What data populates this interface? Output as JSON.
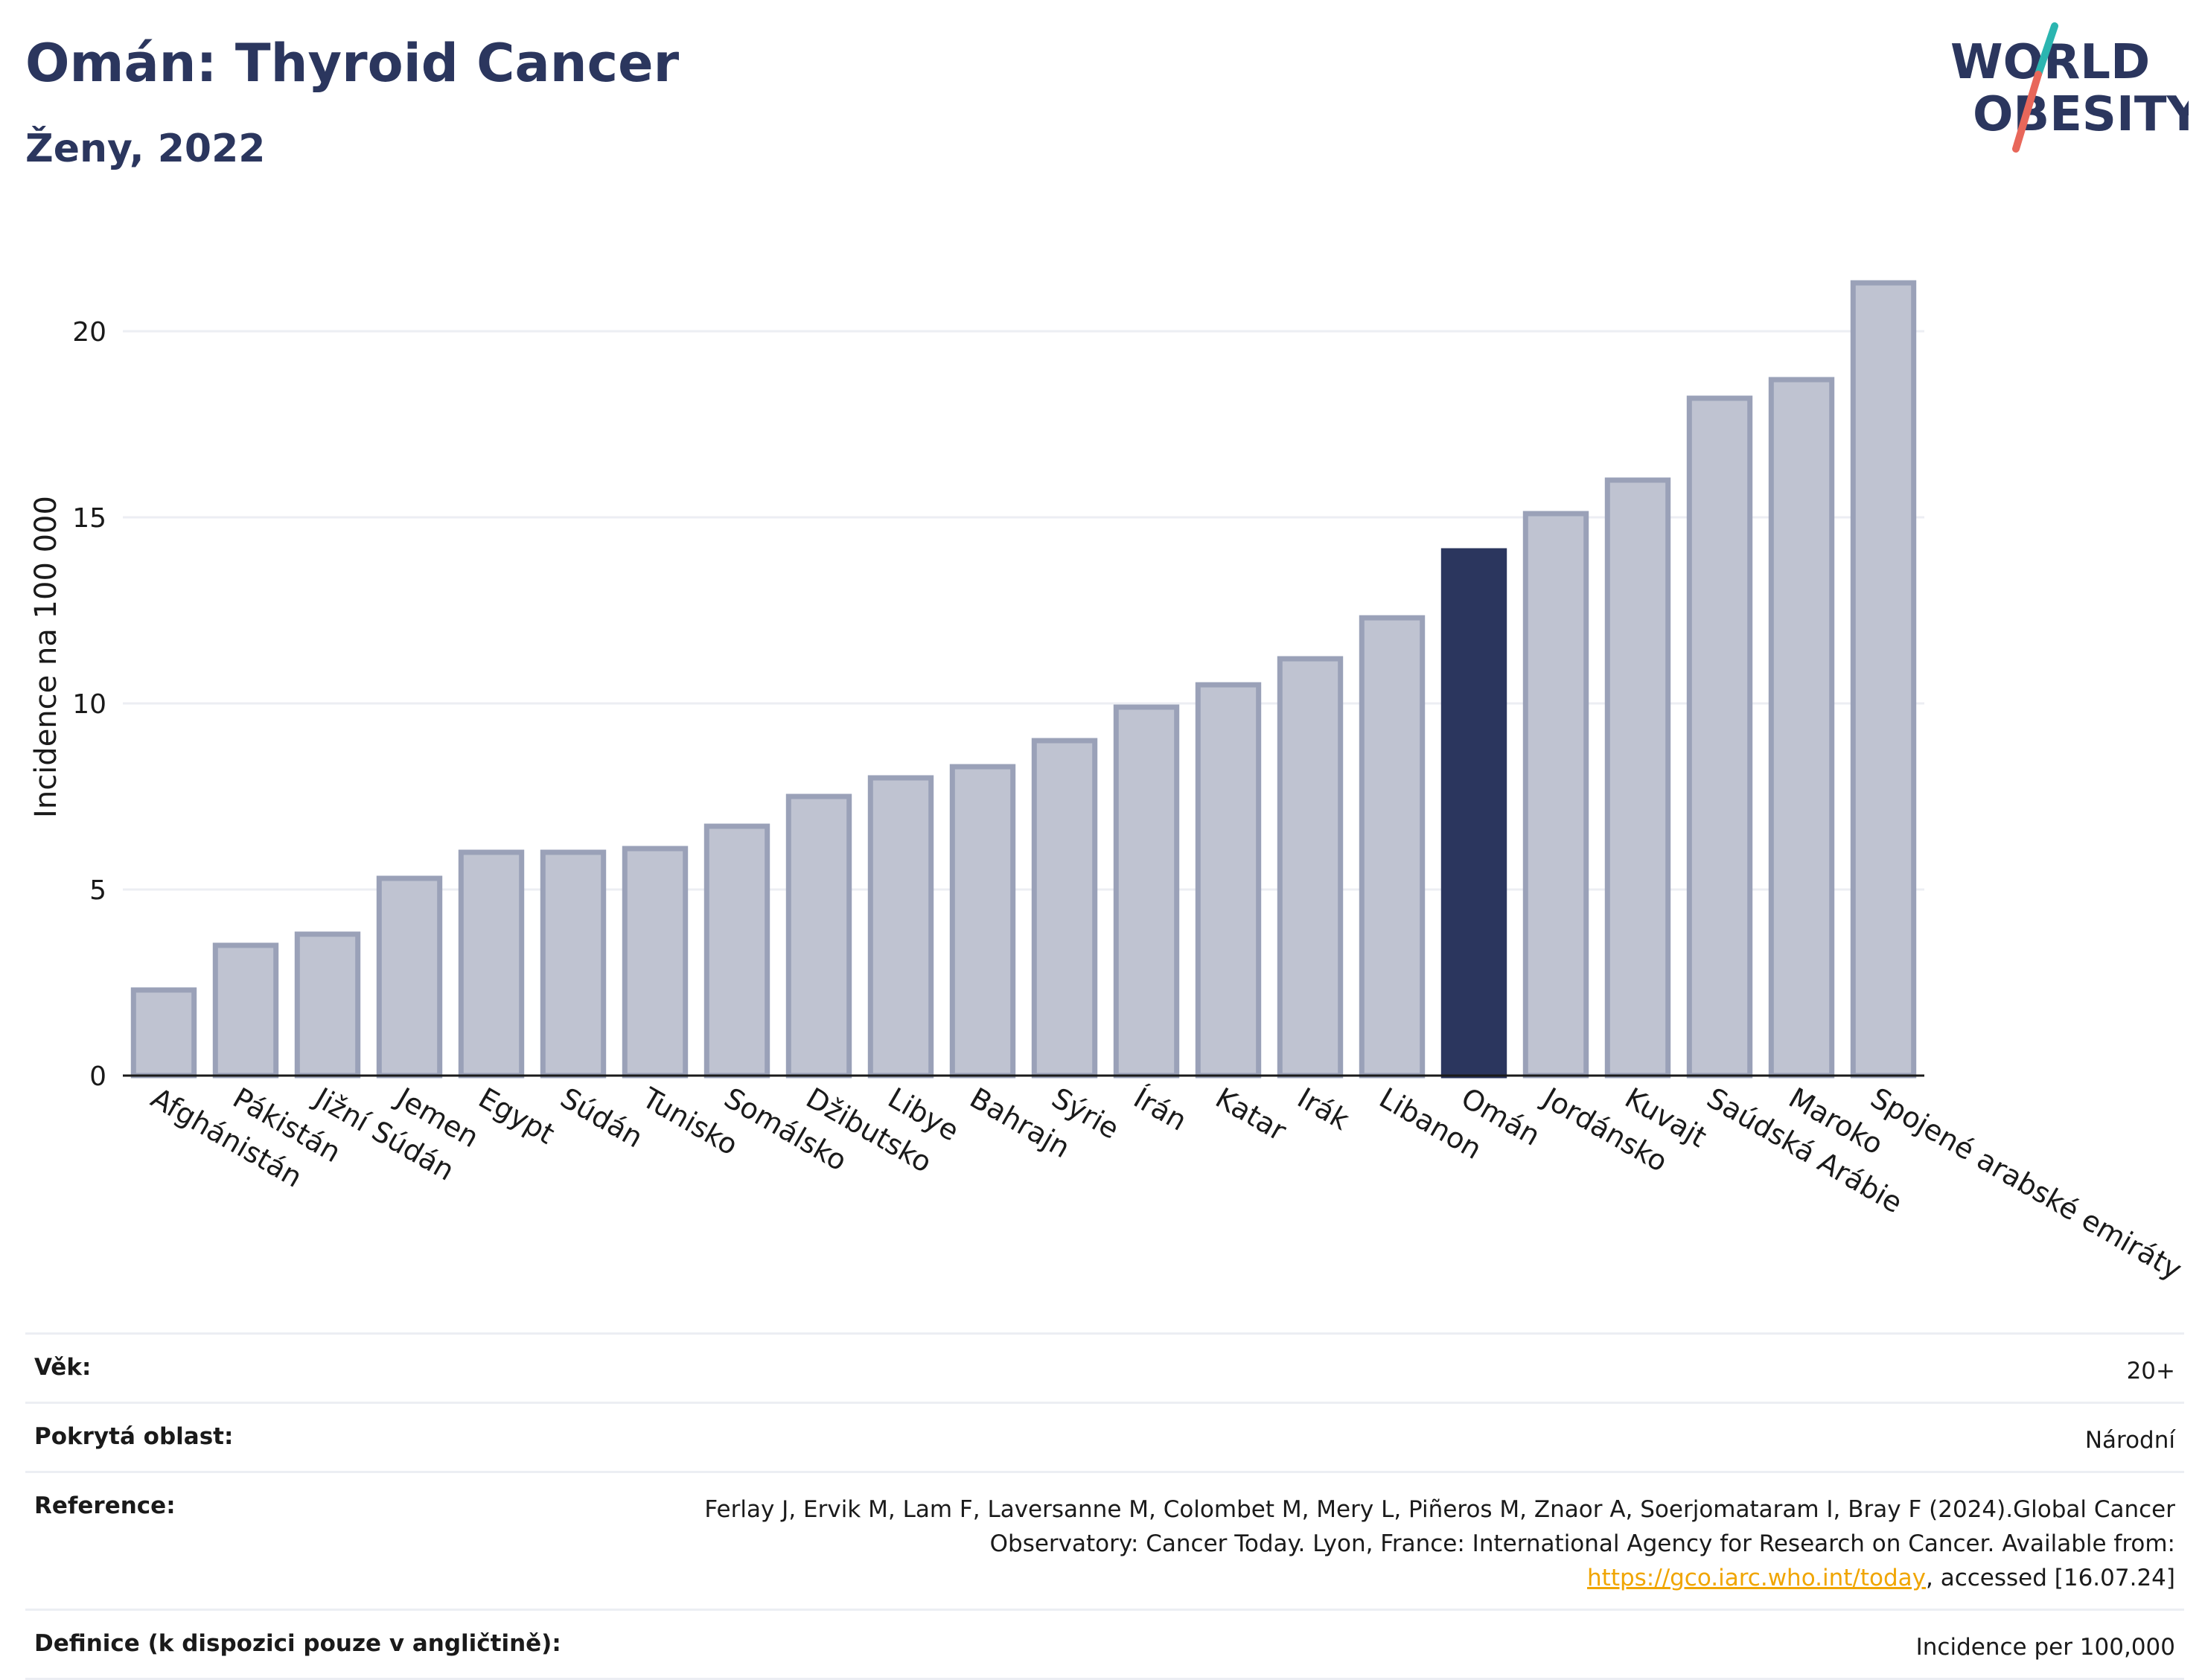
{
  "header": {
    "title": "Omán: Thyroid Cancer",
    "subtitle": "Ženy, 2022",
    "logo_line1": "WORLD",
    "logo_line2": "OBESITY"
  },
  "colors": {
    "highlight": "#2b365e",
    "bar_fill": "#bfc3d1",
    "bar_stroke": "#9aa1b8",
    "grid": "#eceef3",
    "text": "#2b365e",
    "logo_teal": "#2bb5b0",
    "logo_red": "#e8675a",
    "link": "#f0a500"
  },
  "chart_data": {
    "type": "bar",
    "ylabel": "Incidence na 100 000",
    "ylim": [
      0,
      22.5
    ],
    "yticks": [
      0,
      5,
      10,
      15,
      20
    ],
    "grid": true,
    "highlight": "Omán",
    "categories": [
      "Afghánistán",
      "Pákistán",
      "Jižní Súdán",
      "Jemen",
      "Egypt",
      "Súdán",
      "Tunisko",
      "Somálsko",
      "Džibutsko",
      "Libye",
      "Bahrajn",
      "Sýrie",
      "Írán",
      "Katar",
      "Irák",
      "Libanon",
      "Omán",
      "Jordánsko",
      "Kuvajt",
      "Saúdská Arábie",
      "Maroko",
      "Spojené arabské emiráty"
    ],
    "values": [
      2.3,
      3.5,
      3.8,
      5.3,
      6.0,
      6.0,
      6.1,
      6.7,
      7.5,
      8.0,
      8.3,
      9.0,
      9.9,
      10.5,
      11.2,
      12.3,
      14.1,
      15.1,
      16.0,
      18.2,
      18.7,
      21.3
    ]
  },
  "info": {
    "rows": [
      {
        "label": "Věk:",
        "value": "20+"
      },
      {
        "label": "Pokrytá oblast:",
        "value": "Národní"
      },
      {
        "label": "Reference:",
        "value_before": "Ferlay J, Ervik M, Lam F, Laversanne M, Colombet M, Mery L, Piñeros M, Znaor A, Soerjomataram I, Bray F (2024).Global Cancer Observatory: Cancer Today. Lyon, France: International Agency for Research on Cancer. Available from: ",
        "link": "https://gco.iarc.who.int/today",
        "value_after": ", accessed [16.07.24]"
      },
      {
        "label": "Definice (k dispozici pouze v angličtině):",
        "value": "Incidence per 100,000"
      }
    ]
  }
}
